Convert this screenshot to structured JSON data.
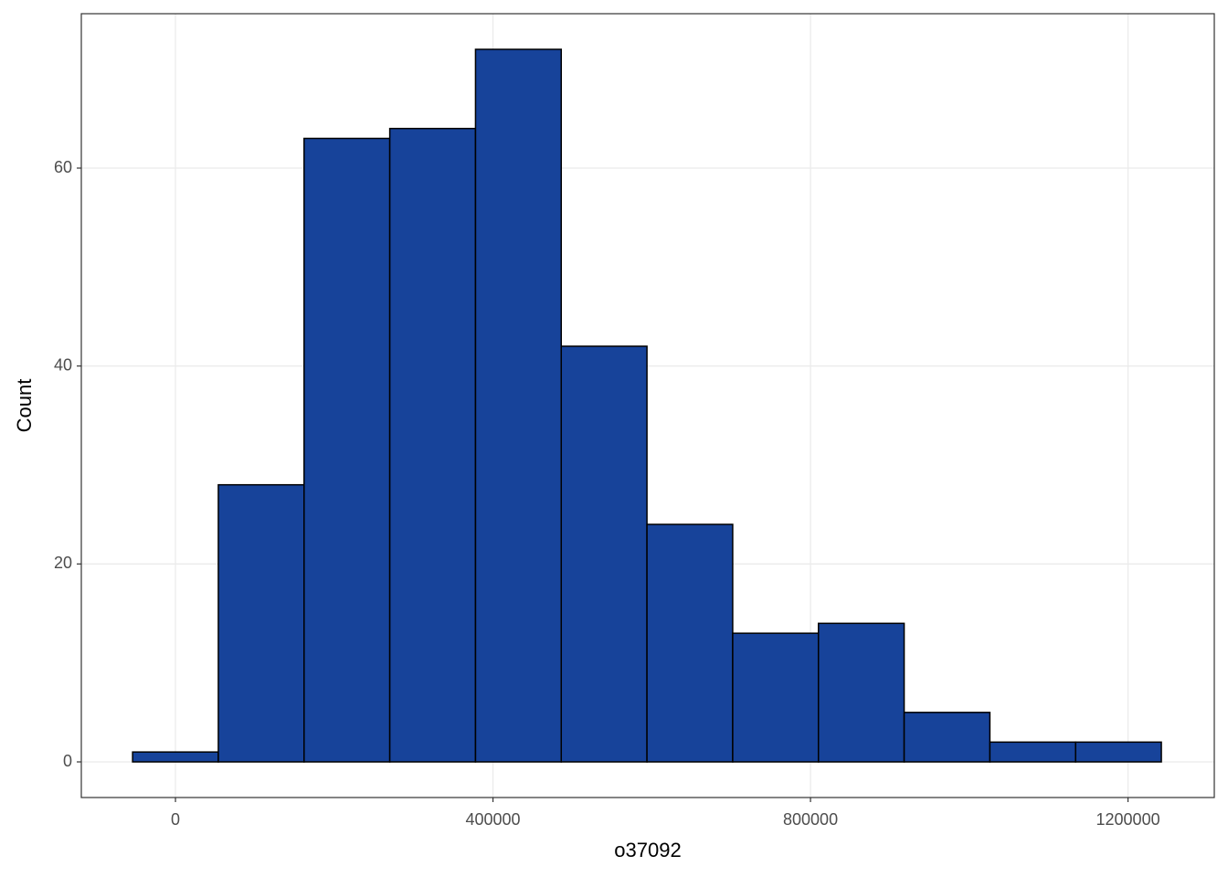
{
  "chart_data": {
    "type": "histogram",
    "xlabel": "o37092",
    "ylabel": "Count",
    "bins": [
      -54000,
      54000,
      162000,
      270000,
      378000,
      486000,
      594000,
      702000,
      810000,
      918000,
      1026000,
      1134000,
      1242000
    ],
    "values": [
      1,
      28,
      63,
      64,
      72,
      42,
      24,
      13,
      14,
      5,
      2,
      2
    ],
    "color": "#17439a",
    "edgecolor": "#000000",
    "xlim": [
      -118600,
      1308700
    ],
    "xticks": [
      0,
      400000,
      800000,
      1200000
    ],
    "ylim": [
      -3.6,
      75.6
    ],
    "yticks": [
      0,
      20,
      40,
      60
    ],
    "grid": true
  }
}
